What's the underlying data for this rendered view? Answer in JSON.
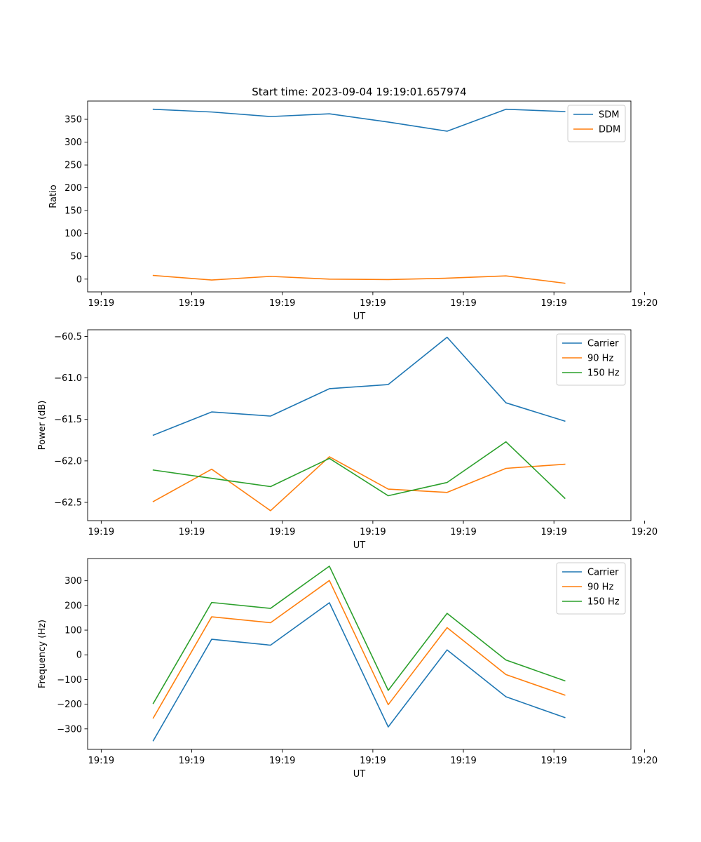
{
  "figure": {
    "title": "Start time: 2023-09-04 19:19:01.657974"
  },
  "chart_data": [
    {
      "type": "line",
      "title": "Start time: 2023-09-04 19:19:01.657974",
      "xlabel": "UT",
      "ylabel": "Ratio",
      "x": [
        0.575,
        1.22,
        1.87,
        2.52,
        3.17,
        3.82,
        4.47,
        5.12
      ],
      "xlim": [
        -0.15,
        5.85
      ],
      "xticks": [
        0,
        1,
        2,
        3,
        4,
        5,
        6
      ],
      "xticklabels": [
        "19:19",
        "19:19",
        "19:19",
        "19:19",
        "19:19",
        "19:19",
        "19:20"
      ],
      "ylim": [
        -28,
        390
      ],
      "yticks": [
        0,
        50,
        100,
        150,
        200,
        250,
        300,
        350
      ],
      "yticklabels": [
        "0",
        "50",
        "100",
        "150",
        "200",
        "250",
        "300",
        "350"
      ],
      "legend_position": "top-right",
      "series": [
        {
          "name": "SDM",
          "color": "#1f77b4",
          "values": [
            372,
            366,
            356,
            362,
            344,
            324,
            372,
            367
          ]
        },
        {
          "name": "DDM",
          "color": "#ff7f0e",
          "values": [
            8,
            -2,
            6,
            0,
            -1,
            2,
            7,
            -9
          ]
        }
      ]
    },
    {
      "type": "line",
      "title": "",
      "xlabel": "UT",
      "ylabel": "Power (dB)",
      "x": [
        0.575,
        1.22,
        1.87,
        2.52,
        3.17,
        3.82,
        4.47,
        5.12
      ],
      "xlim": [
        -0.15,
        5.85
      ],
      "xticks": [
        0,
        1,
        2,
        3,
        4,
        5,
        6
      ],
      "xticklabels": [
        "19:19",
        "19:19",
        "19:19",
        "19:19",
        "19:19",
        "19:19",
        "19:20"
      ],
      "ylim": [
        -62.72,
        -60.42
      ],
      "yticks": [
        -62.5,
        -62.0,
        -61.5,
        -61.0,
        -60.5
      ],
      "yticklabels": [
        "−62.5",
        "−62.0",
        "−61.5",
        "−61.0",
        "−60.5"
      ],
      "legend_position": "top-right",
      "series": [
        {
          "name": "Carrier",
          "color": "#1f77b4",
          "values": [
            -61.69,
            -61.41,
            -61.46,
            -61.13,
            -61.08,
            -60.51,
            -61.3,
            -61.52
          ]
        },
        {
          "name": "90 Hz",
          "color": "#ff7f0e",
          "values": [
            -62.49,
            -62.1,
            -62.6,
            -61.95,
            -62.34,
            -62.38,
            -62.09,
            -62.04
          ]
        },
        {
          "name": "150 Hz",
          "color": "#2ca02c",
          "values": [
            -62.11,
            -62.21,
            -62.31,
            -61.97,
            -62.42,
            -62.26,
            -61.77,
            -62.45
          ]
        }
      ]
    },
    {
      "type": "line",
      "title": "",
      "xlabel": "UT",
      "ylabel": "Frequency (Hz)",
      "x": [
        0.575,
        1.22,
        1.87,
        2.52,
        3.17,
        3.82,
        4.47,
        5.12
      ],
      "xlim": [
        -0.15,
        5.85
      ],
      "xticks": [
        0,
        1,
        2,
        3,
        4,
        5,
        6
      ],
      "xticklabels": [
        "19:19",
        "19:19",
        "19:19",
        "19:19",
        "19:19",
        "19:19",
        "19:20"
      ],
      "ylim": [
        -383,
        390
      ],
      "yticks": [
        -300,
        -200,
        -100,
        0,
        100,
        200,
        300
      ],
      "yticklabels": [
        "−300",
        "−200",
        "−100",
        "0",
        "100",
        "200",
        "300"
      ],
      "legend_position": "top-right",
      "series": [
        {
          "name": "Carrier",
          "color": "#1f77b4",
          "values": [
            -348,
            63,
            39,
            211,
            -292,
            20,
            -170,
            -254
          ]
        },
        {
          "name": "90 Hz",
          "color": "#ff7f0e",
          "values": [
            -256,
            154,
            130,
            301,
            -202,
            110,
            -80,
            -163
          ]
        },
        {
          "name": "150 Hz",
          "color": "#2ca02c",
          "values": [
            -197,
            212,
            188,
            359,
            -144,
            168,
            -21,
            -105
          ]
        }
      ]
    }
  ]
}
